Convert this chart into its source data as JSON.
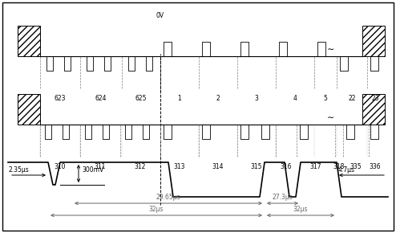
{
  "fig_width": 4.94,
  "fig_height": 2.9,
  "dpi": 100,
  "row1_labels": [
    "623",
    "624",
    "625",
    "1",
    "2",
    "3",
    "4",
    "5",
    "22",
    "23"
  ],
  "row2_labels": [
    "310",
    "311",
    "312",
    "313",
    "314",
    "315",
    "316",
    "317",
    "318",
    "335",
    "336"
  ],
  "ov_label": "0V",
  "ann_300mV": "300mV",
  "ann_235": "2.35μs",
  "ann_2965": "29.65μs",
  "ann_273": "27.3μs",
  "ann_32a": "32μs",
  "ann_32b": "32μs",
  "ann_47": "4.7μs"
}
